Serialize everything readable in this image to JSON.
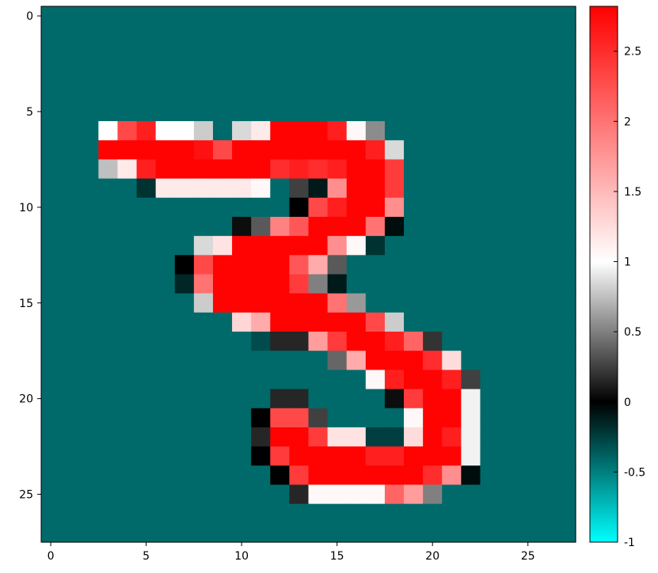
{
  "chart_data": {
    "type": "heatmap",
    "title": "",
    "xlabel": "",
    "ylabel": "",
    "rows": 28,
    "cols": 28,
    "xlim": [
      -0.5,
      27.5
    ],
    "ylim": [
      27.5,
      -0.5
    ],
    "x_ticks": [
      0,
      5,
      10,
      15,
      20,
      25
    ],
    "y_ticks": [
      0,
      5,
      10,
      15,
      20,
      25
    ],
    "background_value": -0.42,
    "colorbar": {
      "min": -1,
      "max": 2.82,
      "ticks": [
        "-1",
        "-0.5",
        "0",
        "0.5",
        "1",
        "1.5",
        "2",
        "2.5"
      ],
      "tick_values": [
        -1,
        -0.5,
        0,
        0.5,
        1,
        1.5,
        2,
        2.5
      ],
      "colormap_stops": [
        {
          "v": -1.0,
          "color": "#00ffff"
        },
        {
          "v": -0.42,
          "color": "#006a6a"
        },
        {
          "v": 0.0,
          "color": "#000000"
        },
        {
          "v": 1.0,
          "color": "#ffffff"
        },
        {
          "v": 2.82,
          "color": "#ff0000"
        }
      ]
    },
    "cells": [
      {
        "row": 6,
        "values": {
          "3": 1.0,
          "4": 2.3,
          "5": 2.6,
          "6": 1.0,
          "7": 1.0,
          "8": 0.8,
          "10": 0.85,
          "11": 1.15,
          "12": 2.8,
          "13": 2.8,
          "14": 2.8,
          "15": 2.6,
          "16": 1.05,
          "17": 0.55
        }
      },
      {
        "row": 7,
        "values": {
          "3": 2.8,
          "4": 2.8,
          "5": 2.8,
          "6": 2.8,
          "7": 2.8,
          "8": 2.7,
          "9": 2.3,
          "10": 2.8,
          "11": 2.8,
          "12": 2.8,
          "13": 2.8,
          "14": 2.8,
          "15": 2.8,
          "16": 2.8,
          "17": 2.6,
          "18": 0.85
        }
      },
      {
        "row": 8,
        "values": {
          "3": 0.75,
          "4": 1.15,
          "5": 2.6,
          "6": 2.8,
          "7": 2.8,
          "8": 2.8,
          "9": 2.8,
          "10": 2.8,
          "11": 2.8,
          "12": 2.5,
          "13": 2.6,
          "14": 2.5,
          "15": 2.6,
          "16": 2.8,
          "17": 2.8,
          "18": 2.4
        }
      },
      {
        "row": 9,
        "values": {
          "5": -0.2,
          "6": 1.15,
          "7": 1.15,
          "8": 1.15,
          "9": 1.15,
          "10": 1.15,
          "11": 1.05,
          "13": 0.25,
          "14": -0.1,
          "15": 1.8,
          "16": 2.8,
          "17": 2.8,
          "18": 2.4
        }
      },
      {
        "row": 10,
        "values": {
          "13": 0.0,
          "14": 2.3,
          "15": 2.6,
          "16": 2.8,
          "17": 2.8,
          "18": 1.8
        }
      },
      {
        "row": 11,
        "values": {
          "10": 0.05,
          "11": 0.35,
          "12": 1.9,
          "13": 2.2,
          "14": 2.8,
          "15": 2.8,
          "16": 2.8,
          "17": 2.0,
          "18": -0.05
        }
      },
      {
        "row": 12,
        "values": {
          "8": 0.85,
          "9": 1.2,
          "10": 2.8,
          "11": 2.8,
          "12": 2.8,
          "13": 2.8,
          "14": 2.8,
          "15": 1.8,
          "16": 1.05,
          "17": -0.2
        }
      },
      {
        "row": 13,
        "values": {
          "7": 0.0,
          "8": 2.3,
          "9": 2.8,
          "10": 2.8,
          "11": 2.8,
          "12": 2.8,
          "13": 2.2,
          "14": 1.6,
          "15": 0.35
        }
      },
      {
        "row": 14,
        "values": {
          "7": -0.15,
          "8": 2.0,
          "9": 2.8,
          "10": 2.8,
          "11": 2.8,
          "12": 2.8,
          "13": 2.4,
          "14": 0.5,
          "15": -0.1
        }
      },
      {
        "row": 15,
        "values": {
          "8": 0.8,
          "9": 2.8,
          "10": 2.8,
          "11": 2.8,
          "12": 2.8,
          "13": 2.8,
          "14": 2.8,
          "15": 2.0,
          "16": 0.6
        }
      },
      {
        "row": 16,
        "values": {
          "10": 1.3,
          "11": 1.6,
          "12": 2.8,
          "13": 2.8,
          "14": 2.8,
          "15": 2.8,
          "16": 2.8,
          "17": 2.3,
          "18": 0.8
        }
      },
      {
        "row": 17,
        "values": {
          "11": -0.3,
          "12": 0.15,
          "13": 0.15,
          "14": 1.7,
          "15": 2.4,
          "16": 2.8,
          "17": 2.8,
          "18": 2.6,
          "19": 2.1,
          "20": 0.2
        }
      },
      {
        "row": 18,
        "values": {
          "15": 0.4,
          "16": 1.6,
          "17": 2.8,
          "18": 2.8,
          "19": 2.8,
          "20": 2.5,
          "21": 1.25
        }
      },
      {
        "row": 19,
        "values": {
          "17": 1.05,
          "18": 2.6,
          "19": 2.8,
          "20": 2.8,
          "21": 2.6,
          "22": 0.25
        }
      },
      {
        "row": 20,
        "values": {
          "12": 0.15,
          "13": 0.15,
          "18": 0.05,
          "19": 2.4,
          "20": 2.8,
          "21": 2.8,
          "22": 0.95
        }
      },
      {
        "row": 21,
        "values": {
          "11": 0.0,
          "12": 2.3,
          "13": 2.3,
          "14": 0.25,
          "19": 1.05,
          "20": 2.8,
          "21": 2.8,
          "22": 0.95
        }
      },
      {
        "row": 22,
        "values": {
          "11": 0.15,
          "12": 2.8,
          "13": 2.8,
          "14": 2.4,
          "15": 1.2,
          "16": 1.2,
          "17": -0.25,
          "18": -0.25,
          "19": 1.25,
          "20": 2.8,
          "21": 2.6,
          "22": 0.95
        }
      },
      {
        "row": 23,
        "values": {
          "11": 0.0,
          "12": 2.4,
          "13": 2.8,
          "14": 2.8,
          "15": 2.8,
          "16": 2.8,
          "17": 2.6,
          "18": 2.6,
          "19": 2.8,
          "20": 2.8,
          "21": 2.8,
          "22": 0.95
        }
      },
      {
        "row": 24,
        "values": {
          "12": 0.0,
          "13": 2.4,
          "14": 2.8,
          "15": 2.8,
          "16": 2.8,
          "17": 2.8,
          "18": 2.8,
          "19": 2.8,
          "20": 2.5,
          "21": 1.8,
          "22": -0.05
        }
      },
      {
        "row": 25,
        "values": {
          "13": 0.15,
          "14": 1.05,
          "15": 1.05,
          "16": 1.05,
          "17": 1.05,
          "18": 2.1,
          "19": 1.7,
          "20": 0.5
        }
      }
    ]
  }
}
